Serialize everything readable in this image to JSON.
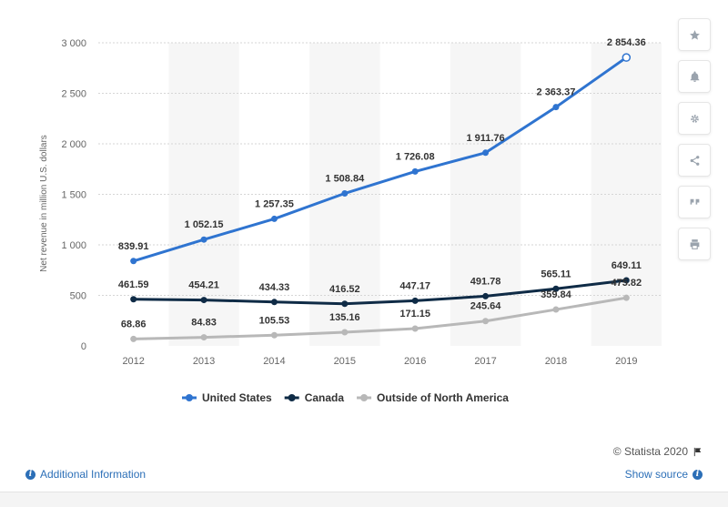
{
  "chart_data": {
    "type": "line",
    "ylabel": "Net revenue in million U.S. dollars",
    "xlabel": "",
    "ylim": [
      0,
      3000
    ],
    "yticks": [
      0,
      500,
      1000,
      1500,
      2000,
      2500,
      3000
    ],
    "ytick_labels": [
      "0",
      "500",
      "1 000",
      "1 500",
      "2 000",
      "2 500",
      "3 000"
    ],
    "categories": [
      "2012",
      "2013",
      "2014",
      "2015",
      "2016",
      "2017",
      "2018",
      "2019"
    ],
    "grid": true,
    "legend_position": "bottom",
    "series": [
      {
        "name": "United States",
        "color": "#2f74d0",
        "values": [
          839.91,
          1052.15,
          1257.35,
          1508.84,
          1726.08,
          1911.76,
          2363.37,
          2854.36
        ],
        "labels": [
          "839.91",
          "1 052.15",
          "1 257.35",
          "1 508.84",
          "1 726.08",
          "1 911.76",
          "2 363.37",
          "2 854.36"
        ]
      },
      {
        "name": "Canada",
        "color": "#0f2b46",
        "values": [
          461.59,
          454.21,
          434.33,
          416.52,
          447.17,
          491.78,
          565.11,
          649.11
        ],
        "labels": [
          "461.59",
          "454.21",
          "434.33",
          "416.52",
          "447.17",
          "491.78",
          "565.11",
          "649.11"
        ]
      },
      {
        "name": "Outside of North America",
        "color": "#b8b8b8",
        "values": [
          68.86,
          84.83,
          105.53,
          135.16,
          171.15,
          245.64,
          359.84,
          475.82
        ],
        "labels": [
          "68.86",
          "84.83",
          "105.53",
          "135.16",
          "171.15",
          "245.64",
          "359.84",
          "475.82"
        ]
      }
    ]
  },
  "toolbar": {
    "icons": [
      "star-icon",
      "bell-icon",
      "gear-icon",
      "share-icon",
      "quote-icon",
      "print-icon"
    ]
  },
  "footer": {
    "credit": "© Statista 2020",
    "additional_info": "Additional Information",
    "show_source": "Show source"
  }
}
